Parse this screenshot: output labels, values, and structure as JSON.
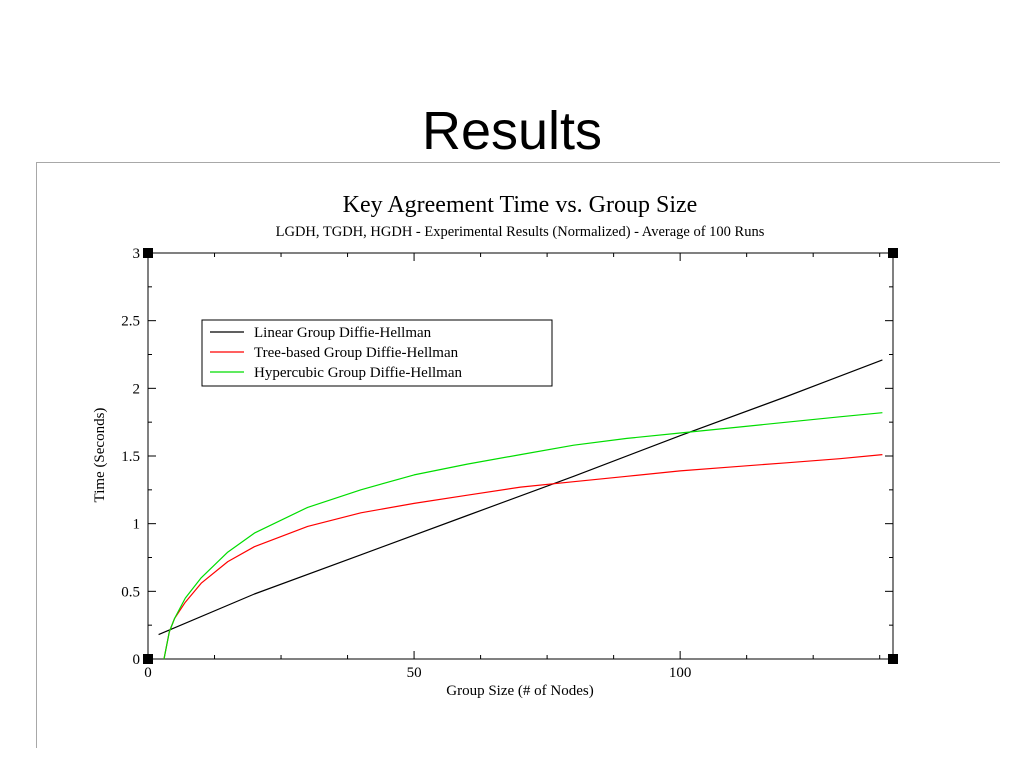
{
  "slide": {
    "title": "Results"
  },
  "chart_data": {
    "type": "line",
    "title": "Key Agreement Time vs. Group Size",
    "subtitle": "LGDH, TGDH, HGDH - Experimental Results (Normalized) - Average of 100 Runs",
    "xlabel": "Group Size (# of Nodes)",
    "ylabel": "Time (Seconds)",
    "xlim": [
      0,
      140
    ],
    "ylim": [
      0,
      3
    ],
    "x_ticks": [
      0,
      50,
      100
    ],
    "y_ticks": [
      "0",
      "0.5",
      "1",
      "1.5",
      "2",
      "2.5",
      "3"
    ],
    "grid": false,
    "legend_placement": "top-left",
    "series": [
      {
        "name": "Linear Group Diffie-Hellman",
        "color": "#000000",
        "x": [
          2,
          20,
          40,
          60,
          80,
          100,
          120,
          138
        ],
        "y": [
          0.18,
          0.48,
          0.77,
          1.06,
          1.35,
          1.65,
          1.94,
          2.21
        ]
      },
      {
        "name": "Tree-based Group Diffie-Hellman",
        "color": "#ff0000",
        "x": [
          3,
          4,
          5,
          7,
          10,
          15,
          20,
          30,
          40,
          50,
          60,
          70,
          80,
          90,
          100,
          110,
          120,
          130,
          138
        ],
        "y": [
          0.0,
          0.2,
          0.3,
          0.42,
          0.56,
          0.72,
          0.83,
          0.98,
          1.08,
          1.15,
          1.21,
          1.27,
          1.31,
          1.35,
          1.39,
          1.42,
          1.45,
          1.48,
          1.51
        ]
      },
      {
        "name": "Hypercubic Group Diffie-Hellman",
        "color": "#00dd00",
        "x": [
          3,
          4,
          5,
          7,
          10,
          15,
          20,
          30,
          40,
          50,
          60,
          70,
          80,
          90,
          100,
          110,
          120,
          130,
          138
        ],
        "y": [
          0.0,
          0.2,
          0.3,
          0.45,
          0.6,
          0.79,
          0.93,
          1.12,
          1.25,
          1.36,
          1.44,
          1.51,
          1.58,
          1.63,
          1.67,
          1.71,
          1.75,
          1.79,
          1.82
        ]
      }
    ]
  }
}
